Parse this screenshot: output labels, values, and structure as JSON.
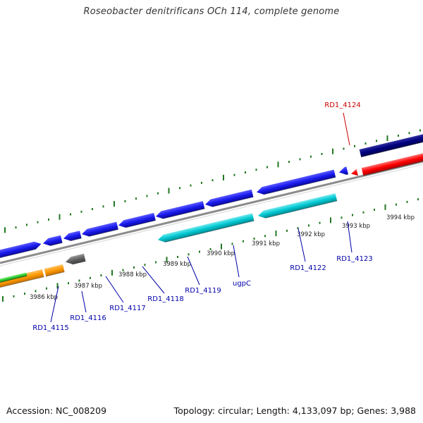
{
  "title": "Roseobacter denitrificans OCh 114, complete genome",
  "footer": {
    "accession": "Accession: NC_008209",
    "summary": "Topology: circular; Length: 4,133,097 bp; Genes: 3,988"
  },
  "colors": {
    "forward_gene": "#1a1aee",
    "reverse_gene": "#00c8d2",
    "highlight_gene": "#000080",
    "rna_gene": "#ff0000",
    "pseudo_gene": "#606060",
    "green_feature": "#33cc33",
    "orange_feature": "#ff9900",
    "backbone": "#8c8c8c",
    "ticks": "#227722",
    "labels": "#0000aa",
    "highlight_label": "#cc0000"
  },
  "kbp_labels": [
    "3986 kbp",
    "3987 kbp",
    "3988 kbp",
    "3989 kbp",
    "3990 kbp",
    "3991 kbp",
    "3992 kbp",
    "3993 kbp",
    "3994 kbp"
  ],
  "gene_labels": [
    "RD1_4115",
    "RD1_4116",
    "RD1_4117",
    "RD1_4118",
    "RD1_4119",
    "ugpC",
    "RD1_4122",
    "RD1_4123",
    "RD1_4124"
  ]
}
